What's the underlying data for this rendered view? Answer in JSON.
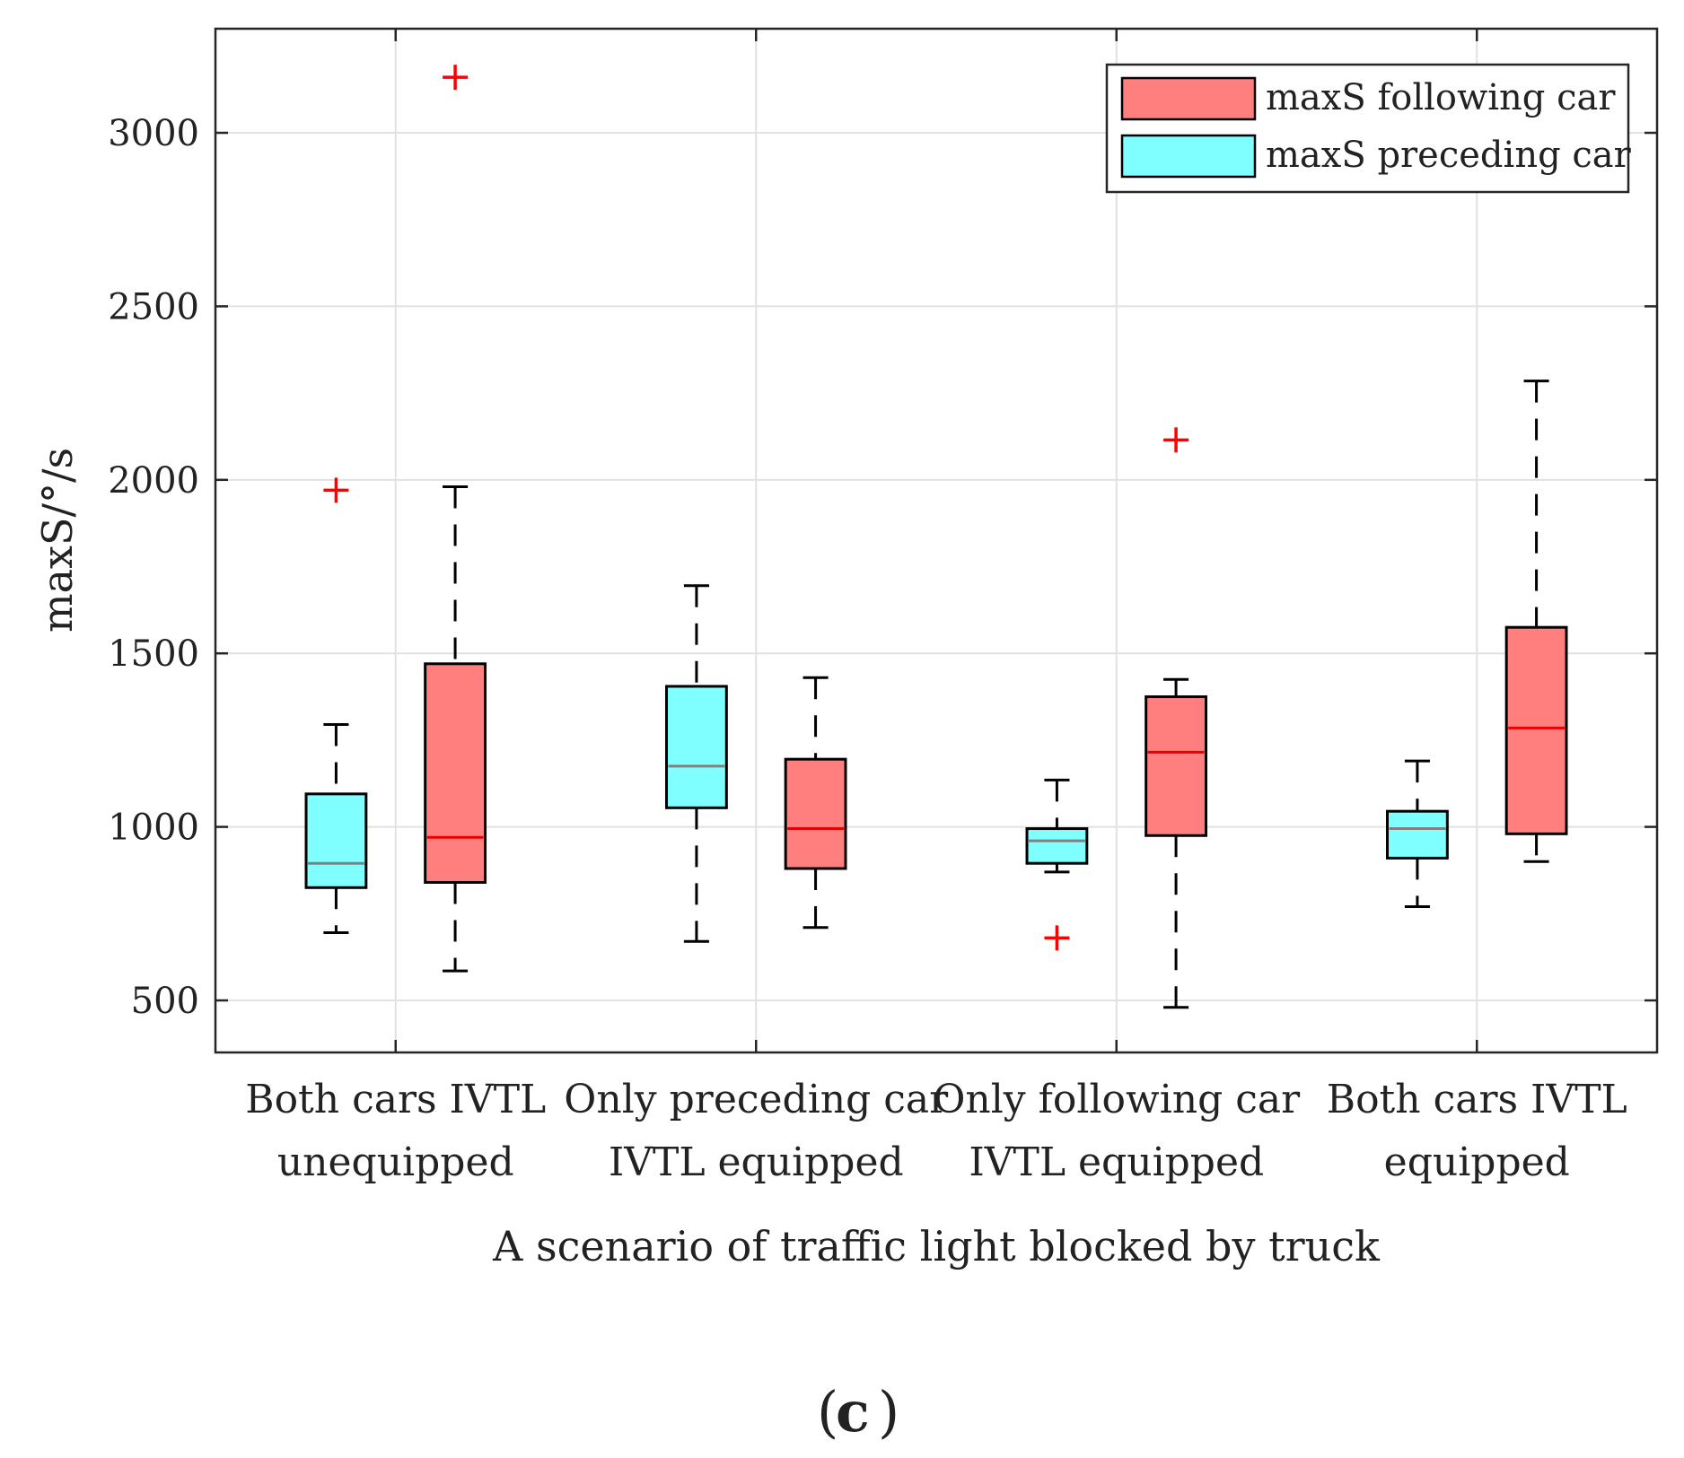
{
  "chart_data": {
    "type": "boxplot",
    "title": "",
    "xlabel": "A scenario of traffic light blocked by truck",
    "ylabel": "maxS/°/s",
    "ylim": [
      350,
      3300
    ],
    "yticks": [
      500,
      1000,
      1500,
      2000,
      2500,
      3000
    ],
    "ytick_labels": [
      "500",
      "1000",
      "1500",
      "2000",
      "2500",
      "3000"
    ],
    "grid": true,
    "legend_position": "top-right",
    "panel_label": "c",
    "categories": [
      {
        "line1": "Both cars IVTL",
        "line2": "unequipped"
      },
      {
        "line1": "Only preceding car",
        "line2": "IVTL equipped"
      },
      {
        "line1": "Only following car",
        "line2": "IVTL equipped"
      },
      {
        "line1": "Both cars IVTL",
        "line2": "equipped"
      }
    ],
    "series": [
      {
        "name": "maxS following car",
        "face_color": "#ff7f7f",
        "median_color": "#e60000",
        "boxes": [
          {
            "whisker_low": 585,
            "q1": 840,
            "median": 970,
            "q3": 1470,
            "whisker_high": 1980,
            "outliers": [
              3160
            ]
          },
          {
            "whisker_low": 710,
            "q1": 880,
            "median": 995,
            "q3": 1195,
            "whisker_high": 1430,
            "outliers": []
          },
          {
            "whisker_low": 480,
            "q1": 975,
            "median": 1215,
            "q3": 1375,
            "whisker_high": 1425,
            "outliers": [
              2115
            ]
          },
          {
            "whisker_low": 900,
            "q1": 980,
            "median": 1285,
            "q3": 1575,
            "whisker_high": 2285,
            "outliers": []
          }
        ]
      },
      {
        "name": "maxS preceding car",
        "face_color": "#7fffff",
        "median_color": "#808080",
        "boxes": [
          {
            "whisker_low": 695,
            "q1": 825,
            "median": 895,
            "q3": 1095,
            "whisker_high": 1295,
            "outliers": [
              1970
            ]
          },
          {
            "whisker_low": 670,
            "q1": 1055,
            "median": 1175,
            "q3": 1405,
            "whisker_high": 1695,
            "outliers": []
          },
          {
            "whisker_low": 870,
            "q1": 895,
            "median": 960,
            "q3": 995,
            "whisker_high": 1135,
            "outliers": [
              680
            ]
          },
          {
            "whisker_low": 770,
            "q1": 910,
            "median": 995,
            "q3": 1045,
            "whisker_high": 1190,
            "outliers": []
          }
        ]
      }
    ],
    "outlier_color": "#ff0000"
  }
}
